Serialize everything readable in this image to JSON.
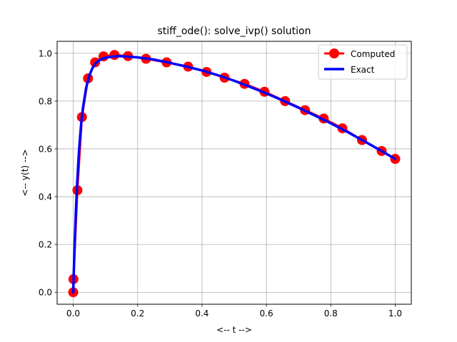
{
  "chart_data": {
    "type": "line",
    "title": "stiff_ode(): solve_ivp() solution",
    "xlabel": "<-- t -->",
    "ylabel": "<-- y(t) -->",
    "xlim": [
      -0.05,
      1.05
    ],
    "ylim": [
      -0.05,
      1.05
    ],
    "xticks": [
      0.0,
      0.2,
      0.4,
      0.6,
      0.8,
      1.0
    ],
    "yticks": [
      0.0,
      0.2,
      0.4,
      0.6,
      0.8,
      1.0
    ],
    "xtick_labels": [
      "0.0",
      "0.2",
      "0.4",
      "0.6",
      "0.8",
      "1.0"
    ],
    "ytick_labels": [
      "0.0",
      "0.2",
      "0.4",
      "0.6",
      "0.8",
      "1.0"
    ],
    "grid": true,
    "legend_position": "top-right",
    "series": [
      {
        "name": "Computed",
        "style": "markers",
        "color": "#ff0000",
        "x": [
          0.0,
          0.0006,
          0.013,
          0.027,
          0.046,
          0.068,
          0.094,
          0.128,
          0.17,
          0.226,
          0.29,
          0.357,
          0.414,
          0.47,
          0.532,
          0.594,
          0.658,
          0.72,
          0.778,
          0.836,
          0.897,
          0.958,
          1.0
        ],
        "y": [
          0.0,
          0.055,
          0.427,
          0.733,
          0.895,
          0.962,
          0.987,
          0.993,
          0.988,
          0.977,
          0.962,
          0.944,
          0.922,
          0.898,
          0.872,
          0.839,
          0.8,
          0.762,
          0.727,
          0.686,
          0.637,
          0.591,
          0.558
        ]
      },
      {
        "name": "Exact",
        "style": "line",
        "color": "#0000ff",
        "x": [
          0.0,
          0.002,
          0.005,
          0.008,
          0.012,
          0.016,
          0.02,
          0.025,
          0.03,
          0.04,
          0.05,
          0.06,
          0.07,
          0.08,
          0.09,
          0.1,
          0.12,
          0.14,
          0.17,
          0.2,
          0.25,
          0.3,
          0.35,
          0.4,
          0.45,
          0.5,
          0.55,
          0.6,
          0.65,
          0.7,
          0.75,
          0.8,
          0.85,
          0.9,
          0.95,
          1.0
        ],
        "y": [
          0.0,
          0.095,
          0.221,
          0.33,
          0.451,
          0.55,
          0.631,
          0.71,
          0.77,
          0.855,
          0.907,
          0.939,
          0.958,
          0.97,
          0.977,
          0.981,
          0.986,
          0.988,
          0.986,
          0.983,
          0.974,
          0.96,
          0.945,
          0.928,
          0.908,
          0.885,
          0.859,
          0.832,
          0.803,
          0.772,
          0.74,
          0.707,
          0.672,
          0.635,
          0.597,
          0.558
        ]
      }
    ]
  }
}
